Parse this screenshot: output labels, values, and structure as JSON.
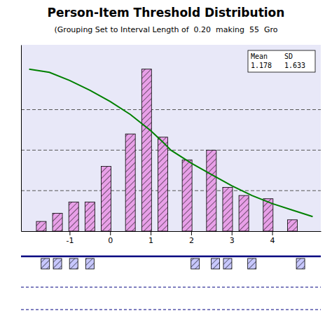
{
  "chart_data": {
    "type": "bar",
    "title": "Person-Item Threshold Distribution",
    "subtitle": "(Grouping Set to Interval Length of  0.20  making  55  Gro",
    "series": [
      {
        "type": "bar",
        "x": [
          -1.7,
          -1.3,
          -0.9,
          -0.5,
          -0.1,
          0.5,
          0.9,
          1.3,
          1.9,
          2.5,
          2.9,
          3.3,
          3.9,
          4.5
        ],
        "values": [
          0.06,
          0.11,
          0.18,
          0.18,
          0.4,
          0.6,
          1.0,
          0.58,
          0.44,
          0.5,
          0.27,
          0.22,
          0.2,
          0.07
        ],
        "color": "#e8a0e8"
      },
      {
        "type": "line",
        "x": [
          -2.0,
          -1.5,
          -1.0,
          -0.5,
          0.0,
          0.5,
          1.0,
          1.3,
          1.5,
          2.0,
          2.5,
          3.0,
          3.5,
          4.0,
          4.5,
          5.0
        ],
        "values": [
          1.0,
          0.98,
          0.93,
          0.87,
          0.8,
          0.72,
          0.62,
          0.55,
          0.5,
          0.42,
          0.35,
          0.28,
          0.22,
          0.17,
          0.13,
          0.09
        ],
        "color": "#008000"
      }
    ],
    "xlim": [
      -2.2,
      5.2
    ],
    "ylim": [
      0,
      1.15
    ],
    "xticks": [
      -1,
      0,
      1,
      2,
      3,
      4
    ],
    "tick_labels": "x",
    "reference_lines": [
      0.25,
      0.5,
      0.75
    ],
    "item_thresholds": [
      -1.6,
      -1.3,
      -0.9,
      -0.5,
      2.1,
      2.6,
      2.9,
      3.5,
      4.7
    ],
    "stats": [
      {
        "label": "Mean",
        "value": 1.178
      },
      {
        "label": "SD",
        "value": 1.633
      }
    ]
  }
}
